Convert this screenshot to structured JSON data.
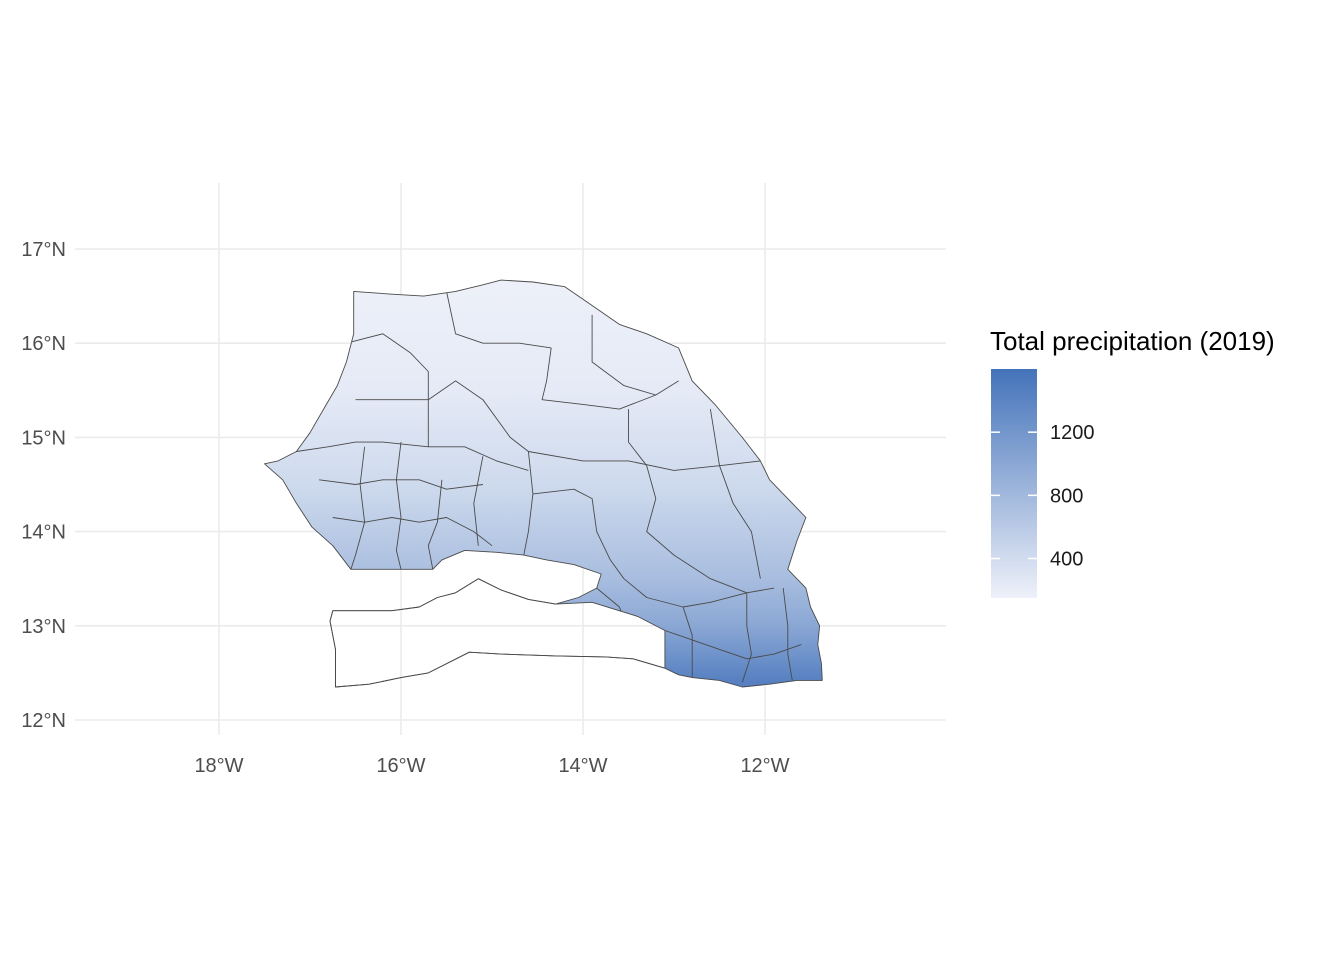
{
  "chart_data": {
    "type": "map",
    "projection": "geographic",
    "x_ticks": [
      {
        "lon": -18,
        "label": "18°W"
      },
      {
        "lon": -16,
        "label": "16°W"
      },
      {
        "lon": -14,
        "label": "14°W"
      },
      {
        "lon": -12,
        "label": "12°W"
      }
    ],
    "y_ticks": [
      {
        "lat": 12,
        "label": "12°N"
      },
      {
        "lat": 13,
        "label": "13°N"
      },
      {
        "lat": 14,
        "label": "14°N"
      },
      {
        "lat": 15,
        "label": "15°N"
      },
      {
        "lat": 16,
        "label": "16°N"
      },
      {
        "lat": 17,
        "label": "17°N"
      }
    ],
    "xlim": [
      -19.6,
      -10.0
    ],
    "ylim": [
      11.85,
      17.7
    ],
    "grid": true,
    "legend": {
      "title": "Total precipitation (2019)",
      "position": "right",
      "range": [
        150,
        1600
      ],
      "breaks": [
        {
          "value": 400,
          "label": "400"
        },
        {
          "value": 800,
          "label": "800"
        },
        {
          "value": 1200,
          "label": "1200"
        }
      ],
      "color_low": "#eef1f9",
      "color_high": "#4473ba"
    },
    "gradient_anchors": [
      {
        "lat": 16.6,
        "value": 160
      },
      {
        "lat": 15.5,
        "value": 230
      },
      {
        "lat": 14.5,
        "value": 420
      },
      {
        "lat": 13.5,
        "value": 750
      },
      {
        "lat": 13.0,
        "value": 1000
      },
      {
        "lat": 12.4,
        "value": 1450
      }
    ],
    "outline_senegal_north": [
      [
        -16.52,
        16.55
      ],
      [
        -16.1,
        16.52
      ],
      [
        -15.75,
        16.5
      ],
      [
        -15.4,
        16.55
      ],
      [
        -15.1,
        16.62
      ],
      [
        -14.9,
        16.67
      ],
      [
        -14.55,
        16.65
      ],
      [
        -14.2,
        16.6
      ],
      [
        -13.9,
        16.4
      ],
      [
        -13.6,
        16.2
      ],
      [
        -13.3,
        16.1
      ],
      [
        -12.95,
        15.95
      ],
      [
        -12.8,
        15.6
      ],
      [
        -12.55,
        15.35
      ],
      [
        -12.25,
        15.0
      ],
      [
        -12.05,
        14.75
      ],
      [
        -11.95,
        14.55
      ],
      [
        -11.7,
        14.3
      ],
      [
        -11.55,
        14.15
      ],
      [
        -11.65,
        13.9
      ],
      [
        -11.75,
        13.6
      ],
      [
        -11.55,
        13.4
      ],
      [
        -11.5,
        13.2
      ],
      [
        -11.4,
        13.0
      ],
      [
        -11.42,
        12.8
      ],
      [
        -11.38,
        12.6
      ],
      [
        -11.37,
        12.42
      ],
      [
        -11.65,
        12.42
      ],
      [
        -11.95,
        12.38
      ],
      [
        -12.25,
        12.35
      ],
      [
        -12.5,
        12.42
      ],
      [
        -12.8,
        12.45
      ],
      [
        -12.95,
        12.48
      ],
      [
        -13.1,
        12.55
      ],
      [
        -13.45,
        12.65
      ],
      [
        -13.75,
        12.67
      ],
      [
        -14.3,
        12.68
      ],
      [
        -14.9,
        12.7
      ],
      [
        -15.25,
        12.72
      ],
      [
        -15.7,
        12.5
      ],
      [
        -16.0,
        12.45
      ],
      [
        -16.35,
        12.38
      ],
      [
        -16.72,
        12.35
      ],
      [
        -16.72,
        12.75
      ],
      [
        -16.78,
        13.05
      ],
      [
        -16.75,
        13.16
      ],
      [
        -16.1,
        13.16
      ],
      [
        -15.8,
        13.2
      ],
      [
        -15.6,
        13.3
      ],
      [
        -15.4,
        13.35
      ],
      [
        -15.15,
        13.5
      ],
      [
        -14.9,
        13.38
      ],
      [
        -14.6,
        13.28
      ],
      [
        -14.3,
        13.23
      ],
      [
        -14.05,
        13.3
      ],
      [
        -13.85,
        13.4
      ],
      [
        -13.8,
        13.55
      ],
      [
        -14.1,
        13.65
      ],
      [
        -14.4,
        13.7
      ],
      [
        -14.65,
        13.75
      ],
      [
        -14.95,
        13.78
      ],
      [
        -15.3,
        13.8
      ],
      [
        -15.55,
        13.7
      ],
      [
        -15.65,
        13.6
      ],
      [
        -16.2,
        13.6
      ],
      [
        -16.55,
        13.6
      ],
      [
        -16.75,
        13.85
      ],
      [
        -16.98,
        14.05
      ],
      [
        -17.15,
        14.3
      ],
      [
        -17.3,
        14.55
      ],
      [
        -17.5,
        14.72
      ],
      [
        -17.35,
        14.75
      ],
      [
        -17.15,
        14.85
      ],
      [
        -17.0,
        15.05
      ],
      [
        -16.85,
        15.3
      ],
      [
        -16.7,
        15.55
      ],
      [
        -16.6,
        15.8
      ],
      [
        -16.52,
        16.1
      ],
      [
        -16.52,
        16.55
      ]
    ],
    "outline_casamance": [
      [
        -16.72,
        12.35
      ],
      [
        -16.35,
        12.38
      ],
      [
        -16.0,
        12.45
      ],
      [
        -15.7,
        12.5
      ],
      [
        -15.25,
        12.72
      ],
      [
        -14.9,
        12.7
      ],
      [
        -14.3,
        12.68
      ],
      [
        -13.75,
        12.67
      ],
      [
        -13.45,
        12.65
      ],
      [
        -13.1,
        12.55
      ],
      [
        -13.1,
        12.95
      ],
      [
        -13.4,
        13.1
      ],
      [
        -13.9,
        13.25
      ],
      [
        -14.3,
        13.23
      ],
      [
        -14.6,
        13.28
      ],
      [
        -14.9,
        13.38
      ],
      [
        -15.15,
        13.5
      ],
      [
        -15.4,
        13.35
      ],
      [
        -15.6,
        13.3
      ],
      [
        -15.8,
        13.2
      ],
      [
        -16.1,
        13.16
      ],
      [
        -16.75,
        13.16
      ],
      [
        -16.78,
        13.05
      ],
      [
        -16.72,
        12.75
      ],
      [
        -16.72,
        12.35
      ]
    ],
    "admin_borders": [
      [
        [
          -16.6,
          16.0
        ],
        [
          -16.2,
          16.1
        ],
        [
          -15.9,
          15.9
        ],
        [
          -15.7,
          15.7
        ]
      ],
      [
        [
          -15.5,
          16.55
        ],
        [
          -15.4,
          16.1
        ],
        [
          -15.1,
          16.0
        ],
        [
          -14.7,
          16.0
        ],
        [
          -14.35,
          15.95
        ]
      ],
      [
        [
          -14.35,
          15.95
        ],
        [
          -14.4,
          15.6
        ],
        [
          -14.45,
          15.4
        ],
        [
          -14.0,
          15.35
        ],
        [
          -13.6,
          15.3
        ],
        [
          -13.2,
          15.45
        ],
        [
          -12.95,
          15.6
        ]
      ],
      [
        [
          -13.9,
          16.3
        ],
        [
          -13.9,
          15.8
        ],
        [
          -13.55,
          15.55
        ],
        [
          -13.2,
          15.45
        ]
      ],
      [
        [
          -16.5,
          15.4
        ],
        [
          -16.2,
          15.4
        ],
        [
          -15.7,
          15.4
        ],
        [
          -15.4,
          15.6
        ],
        [
          -15.1,
          15.4
        ],
        [
          -14.8,
          15.0
        ],
        [
          -14.6,
          14.85
        ]
      ],
      [
        [
          -15.7,
          15.7
        ],
        [
          -15.7,
          15.2
        ],
        [
          -15.7,
          14.9
        ]
      ],
      [
        [
          -14.6,
          14.85
        ],
        [
          -14.0,
          14.75
        ],
        [
          -13.5,
          14.75
        ],
        [
          -13.0,
          14.65
        ],
        [
          -12.5,
          14.7
        ],
        [
          -12.05,
          14.75
        ]
      ],
      [
        [
          -13.5,
          15.3
        ],
        [
          -13.5,
          14.95
        ],
        [
          -13.3,
          14.7
        ],
        [
          -13.2,
          14.35
        ],
        [
          -13.3,
          14.0
        ],
        [
          -13.0,
          13.75
        ],
        [
          -12.6,
          13.5
        ],
        [
          -12.2,
          13.35
        ],
        [
          -11.9,
          13.4
        ]
      ],
      [
        [
          -12.6,
          15.3
        ],
        [
          -12.5,
          14.7
        ],
        [
          -12.35,
          14.3
        ],
        [
          -12.15,
          14.0
        ],
        [
          -12.05,
          13.5
        ]
      ],
      [
        [
          -17.15,
          14.85
        ],
        [
          -16.8,
          14.9
        ],
        [
          -16.5,
          14.95
        ],
        [
          -16.2,
          14.95
        ],
        [
          -15.7,
          14.9
        ],
        [
          -15.3,
          14.9
        ],
        [
          -14.95,
          14.75
        ],
        [
          -14.6,
          14.65
        ]
      ],
      [
        [
          -16.9,
          14.55
        ],
        [
          -16.5,
          14.5
        ],
        [
          -16.2,
          14.55
        ],
        [
          -15.8,
          14.55
        ],
        [
          -15.5,
          14.45
        ],
        [
          -15.1,
          14.5
        ]
      ],
      [
        [
          -16.75,
          14.15
        ],
        [
          -16.4,
          14.1
        ],
        [
          -16.1,
          14.15
        ],
        [
          -15.8,
          14.1
        ],
        [
          -15.5,
          14.15
        ],
        [
          -15.2,
          14.0
        ],
        [
          -15.0,
          13.85
        ]
      ],
      [
        [
          -16.4,
          14.9
        ],
        [
          -16.45,
          14.5
        ],
        [
          -16.4,
          14.1
        ],
        [
          -16.5,
          13.75
        ],
        [
          -16.55,
          13.6
        ]
      ],
      [
        [
          -16.0,
          14.95
        ],
        [
          -16.05,
          14.55
        ],
        [
          -16.0,
          14.15
        ],
        [
          -16.05,
          13.8
        ],
        [
          -16.0,
          13.6
        ]
      ],
      [
        [
          -15.55,
          14.55
        ],
        [
          -15.6,
          14.1
        ],
        [
          -15.7,
          13.85
        ],
        [
          -15.65,
          13.6
        ]
      ],
      [
        [
          -15.1,
          14.8
        ],
        [
          -15.2,
          14.3
        ],
        [
          -15.15,
          13.85
        ]
      ],
      [
        [
          -14.6,
          14.85
        ],
        [
          -14.55,
          14.4
        ],
        [
          -14.6,
          14.0
        ],
        [
          -14.65,
          13.75
        ]
      ],
      [
        [
          -14.55,
          14.4
        ],
        [
          -14.1,
          14.45
        ],
        [
          -13.9,
          14.35
        ],
        [
          -13.85,
          14.0
        ],
        [
          -13.7,
          13.7
        ],
        [
          -13.55,
          13.5
        ],
        [
          -13.3,
          13.3
        ],
        [
          -12.9,
          13.2
        ],
        [
          -12.6,
          13.25
        ],
        [
          -12.2,
          13.35
        ]
      ],
      [
        [
          -16.72,
          13.0
        ],
        [
          -16.5,
          12.9
        ],
        [
          -16.2,
          12.85
        ],
        [
          -15.9,
          12.8
        ],
        [
          -15.6,
          12.75
        ]
      ],
      [
        [
          -16.3,
          13.16
        ],
        [
          -16.3,
          12.85
        ],
        [
          -16.2,
          12.55
        ],
        [
          -16.2,
          12.42
        ]
      ],
      [
        [
          -15.6,
          13.3
        ],
        [
          -15.65,
          12.95
        ],
        [
          -15.6,
          12.65
        ]
      ],
      [
        [
          -15.2,
          13.45
        ],
        [
          -15.1,
          13.1
        ],
        [
          -14.95,
          12.95
        ],
        [
          -14.8,
          12.72
        ]
      ],
      [
        [
          -14.6,
          13.28
        ],
        [
          -14.5,
          13.0
        ],
        [
          -14.3,
          12.95
        ],
        [
          -14.05,
          12.75
        ]
      ],
      [
        [
          -13.85,
          13.4
        ],
        [
          -13.6,
          13.2
        ],
        [
          -13.5,
          12.95
        ],
        [
          -13.45,
          12.67
        ]
      ],
      [
        [
          -13.1,
          12.95
        ],
        [
          -12.8,
          12.85
        ],
        [
          -12.5,
          12.75
        ],
        [
          -12.2,
          12.65
        ],
        [
          -11.9,
          12.7
        ],
        [
          -11.6,
          12.8
        ]
      ],
      [
        [
          -12.9,
          13.2
        ],
        [
          -12.8,
          12.9
        ],
        [
          -12.8,
          12.6
        ],
        [
          -12.8,
          12.45
        ]
      ],
      [
        [
          -12.2,
          13.35
        ],
        [
          -12.2,
          13.0
        ],
        [
          -12.15,
          12.7
        ],
        [
          -12.25,
          12.4
        ]
      ],
      [
        [
          -11.8,
          13.4
        ],
        [
          -11.75,
          13.0
        ],
        [
          -11.75,
          12.7
        ],
        [
          -11.7,
          12.42
        ]
      ]
    ]
  }
}
